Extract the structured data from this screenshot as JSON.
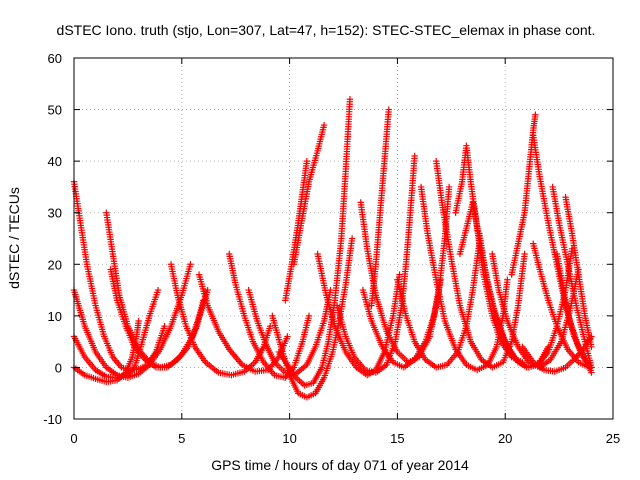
{
  "chart_data": {
    "type": "scatter",
    "title": "dSTEC Iono. truth (stjo, Lon=307, Lat=47, h=152): STEC-STEC_elemax in phase cont.",
    "xlabel": "GPS time / hours of day 071 of year 2014",
    "ylabel": "dSTEC  / TECUs",
    "xlim": [
      0,
      25
    ],
    "ylim": [
      -10,
      60
    ],
    "xticks": [
      "0",
      "5",
      "10",
      "15",
      "20",
      "25"
    ],
    "yticks": [
      "-10",
      "0",
      "10",
      "20",
      "30",
      "40",
      "50",
      "60"
    ],
    "grid": true,
    "marker": "plus",
    "color": "#ff0000",
    "series": [
      {
        "points": [
          [
            0.0,
            36
          ],
          [
            0.3,
            28
          ],
          [
            0.6,
            20
          ],
          [
            1.0,
            12
          ],
          [
            1.4,
            6
          ],
          [
            1.8,
            2
          ],
          [
            2.2,
            0
          ],
          [
            2.6,
            -0.5
          ],
          [
            3.0,
            -0.3
          ],
          [
            3.4,
            0.5
          ],
          [
            3.8,
            3
          ],
          [
            4.2,
            8
          ]
        ]
      },
      {
        "points": [
          [
            0.0,
            15
          ],
          [
            0.5,
            8
          ],
          [
            1.0,
            3
          ],
          [
            1.5,
            0
          ],
          [
            2.0,
            -1.5
          ],
          [
            2.5,
            -2
          ],
          [
            3.0,
            -1.2
          ],
          [
            3.5,
            0.5
          ],
          [
            4.0,
            3.5
          ],
          [
            4.5,
            8
          ],
          [
            5.0,
            14
          ],
          [
            5.4,
            20
          ]
        ]
      },
      {
        "points": [
          [
            0.0,
            6
          ],
          [
            0.5,
            2
          ],
          [
            1.0,
            -0.5
          ],
          [
            1.5,
            -1.8
          ],
          [
            2.0,
            -2
          ],
          [
            2.5,
            -1.5
          ],
          [
            2.8,
            0
          ],
          [
            3.1,
            4
          ],
          [
            3.5,
            10
          ],
          [
            3.9,
            15
          ]
        ]
      },
      {
        "points": [
          [
            0.0,
            0
          ],
          [
            0.5,
            -1.5
          ],
          [
            1.0,
            -2.2
          ],
          [
            1.5,
            -2.8
          ],
          [
            2.0,
            -2.5
          ],
          [
            2.4,
            -1
          ],
          [
            2.7,
            2
          ],
          [
            2.9,
            6
          ],
          [
            3.0,
            9
          ]
        ]
      },
      {
        "points": [
          [
            1.5,
            30
          ],
          [
            1.8,
            22
          ],
          [
            2.1,
            14
          ],
          [
            2.5,
            8
          ],
          [
            3.0,
            3.5
          ],
          [
            3.5,
            1
          ],
          [
            4.0,
            0
          ],
          [
            4.5,
            0.5
          ],
          [
            5.0,
            2.5
          ],
          [
            5.5,
            6
          ],
          [
            5.9,
            11
          ],
          [
            6.2,
            15
          ]
        ]
      },
      {
        "points": [
          [
            1.7,
            19
          ],
          [
            2.0,
            13
          ],
          [
            2.4,
            8
          ],
          [
            2.8,
            4
          ],
          [
            3.3,
            1.5
          ],
          [
            3.8,
            0
          ],
          [
            4.3,
            0
          ],
          [
            4.8,
            1.5
          ],
          [
            5.3,
            4
          ],
          [
            5.7,
            8
          ],
          [
            6.0,
            13
          ]
        ]
      },
      {
        "points": [
          [
            4.5,
            20
          ],
          [
            4.8,
            14
          ],
          [
            5.2,
            8
          ],
          [
            5.6,
            4
          ],
          [
            6.1,
            1
          ],
          [
            6.7,
            -1
          ],
          [
            7.3,
            -1.5
          ],
          [
            7.9,
            -0.8
          ],
          [
            8.4,
            1
          ],
          [
            8.8,
            4
          ],
          [
            9.1,
            8
          ]
        ]
      },
      {
        "points": [
          [
            5.8,
            18
          ],
          [
            6.2,
            12
          ],
          [
            6.7,
            7
          ],
          [
            7.2,
            3.5
          ],
          [
            7.8,
            0.5
          ],
          [
            8.4,
            -0.8
          ],
          [
            9.0,
            -0.5
          ],
          [
            9.5,
            2
          ],
          [
            9.9,
            6
          ]
        ]
      },
      {
        "points": [
          [
            7.2,
            22
          ],
          [
            7.5,
            16
          ],
          [
            7.9,
            10
          ],
          [
            8.3,
            5
          ],
          [
            8.8,
            1
          ],
          [
            9.3,
            -1.5
          ],
          [
            9.8,
            -2
          ],
          [
            10.2,
            0
          ],
          [
            10.6,
            5
          ],
          [
            10.9,
            10
          ]
        ]
      },
      {
        "points": [
          [
            8.1,
            15
          ],
          [
            8.5,
            9
          ],
          [
            8.9,
            4.5
          ],
          [
            9.3,
            1
          ],
          [
            9.8,
            -1
          ],
          [
            10.3,
            -1.2
          ],
          [
            10.8,
            0.5
          ],
          [
            11.2,
            4
          ],
          [
            11.6,
            9
          ],
          [
            11.9,
            15
          ]
        ]
      },
      {
        "points": [
          [
            9.2,
            10
          ],
          [
            9.6,
            4
          ],
          [
            10.0,
            -1.5
          ],
          [
            10.4,
            -5
          ],
          [
            10.8,
            -5.8
          ],
          [
            11.2,
            -5
          ],
          [
            11.6,
            -2
          ],
          [
            12.0,
            3
          ],
          [
            12.3,
            9
          ],
          [
            12.6,
            16
          ],
          [
            12.9,
            25
          ]
        ]
      },
      {
        "points": [
          [
            9.5,
            3
          ],
          [
            9.9,
            0.5
          ],
          [
            10.3,
            -2
          ],
          [
            10.7,
            -3.5
          ],
          [
            11.1,
            -3
          ],
          [
            11.5,
            0
          ],
          [
            11.8,
            5
          ],
          [
            12.1,
            13
          ],
          [
            12.4,
            25
          ],
          [
            12.6,
            38
          ],
          [
            12.8,
            52
          ]
        ]
      },
      {
        "points": [
          [
            9.8,
            13
          ],
          [
            10.1,
            20
          ],
          [
            10.4,
            28
          ],
          [
            10.6,
            34
          ],
          [
            10.8,
            40
          ]
        ]
      },
      {
        "points": [
          [
            10.2,
            20
          ],
          [
            10.5,
            27
          ],
          [
            10.9,
            36
          ],
          [
            11.3,
            42
          ],
          [
            11.6,
            47
          ]
        ]
      },
      {
        "points": [
          [
            11.3,
            22
          ],
          [
            11.7,
            14
          ],
          [
            12.1,
            8
          ],
          [
            12.6,
            3
          ],
          [
            13.1,
            0
          ],
          [
            13.6,
            -1.5
          ],
          [
            14.0,
            -0.5
          ],
          [
            14.4,
            3
          ],
          [
            14.8,
            10
          ],
          [
            15.1,
            18
          ]
        ]
      },
      {
        "points": [
          [
            12.2,
            12
          ],
          [
            12.6,
            6
          ],
          [
            13.0,
            2
          ],
          [
            13.5,
            -0.5
          ],
          [
            14.0,
            -1
          ],
          [
            14.5,
            0.5
          ],
          [
            14.9,
            5
          ],
          [
            15.2,
            12
          ],
          [
            15.4,
            20
          ],
          [
            15.6,
            30
          ],
          [
            15.8,
            41
          ]
        ]
      },
      {
        "points": [
          [
            13.3,
            32
          ],
          [
            13.6,
            23
          ],
          [
            14.0,
            14
          ],
          [
            14.5,
            7
          ],
          [
            15.0,
            3
          ],
          [
            15.5,
            1
          ],
          [
            16.0,
            2
          ],
          [
            16.5,
            6
          ],
          [
            16.9,
            14
          ],
          [
            17.2,
            25
          ],
          [
            17.4,
            35
          ]
        ]
      },
      {
        "points": [
          [
            13.4,
            15
          ],
          [
            13.8,
            9
          ],
          [
            14.3,
            4
          ],
          [
            14.8,
            1
          ],
          [
            15.3,
            0
          ],
          [
            15.8,
            1.5
          ],
          [
            16.3,
            5
          ],
          [
            16.7,
            10
          ],
          [
            17.0,
            17
          ]
        ]
      },
      {
        "points": [
          [
            13.8,
            12
          ],
          [
            14.0,
            20
          ],
          [
            14.2,
            30
          ],
          [
            14.4,
            40
          ],
          [
            14.6,
            50
          ]
        ]
      },
      {
        "points": [
          [
            15.0,
            17
          ],
          [
            15.4,
            10
          ],
          [
            15.8,
            5
          ],
          [
            16.3,
            1.5
          ],
          [
            16.8,
            0
          ],
          [
            17.3,
            0.5
          ],
          [
            17.8,
            3
          ],
          [
            18.2,
            8
          ],
          [
            18.5,
            15
          ],
          [
            18.8,
            24
          ]
        ]
      },
      {
        "points": [
          [
            16.1,
            35
          ],
          [
            16.4,
            26
          ],
          [
            16.8,
            17
          ],
          [
            17.2,
            9
          ],
          [
            17.7,
            3.5
          ],
          [
            18.2,
            0.5
          ],
          [
            18.7,
            -0.5
          ],
          [
            19.2,
            0.5
          ],
          [
            19.6,
            4
          ],
          [
            19.9,
            10
          ],
          [
            20.1,
            17
          ]
        ]
      },
      {
        "points": [
          [
            16.8,
            40
          ],
          [
            17.1,
            31
          ],
          [
            17.5,
            21
          ],
          [
            17.9,
            12
          ],
          [
            18.4,
            5
          ],
          [
            18.9,
            1.5
          ],
          [
            19.4,
            0
          ],
          [
            19.9,
            1
          ],
          [
            20.3,
            5
          ],
          [
            20.6,
            12
          ],
          [
            20.9,
            22
          ]
        ]
      },
      {
        "points": [
          [
            17.7,
            30
          ],
          [
            18.0,
            36
          ],
          [
            18.2,
            43
          ],
          [
            18.4,
            36
          ],
          [
            18.7,
            27
          ],
          [
            19.0,
            18
          ],
          [
            19.4,
            10
          ],
          [
            19.8,
            5
          ],
          [
            20.3,
            2
          ],
          [
            20.8,
            1
          ]
        ]
      },
      {
        "points": [
          [
            17.9,
            22
          ],
          [
            18.2,
            27
          ],
          [
            18.5,
            32
          ],
          [
            18.8,
            25
          ],
          [
            19.2,
            16
          ],
          [
            19.6,
            9
          ],
          [
            20.1,
            4
          ],
          [
            20.6,
            1
          ],
          [
            21.1,
            0
          ],
          [
            21.6,
            1
          ],
          [
            22.0,
            4
          ]
        ]
      },
      {
        "points": [
          [
            18.8,
            26
          ],
          [
            19.1,
            18
          ],
          [
            19.5,
            11
          ],
          [
            20.0,
            5
          ],
          [
            20.5,
            1.5
          ],
          [
            21.0,
            0
          ],
          [
            21.5,
            0.5
          ],
          [
            22.0,
            3
          ],
          [
            22.4,
            8
          ],
          [
            22.8,
            15
          ],
          [
            23.1,
            23
          ]
        ]
      },
      {
        "points": [
          [
            19.4,
            22
          ],
          [
            19.7,
            15
          ],
          [
            20.1,
            9
          ],
          [
            20.6,
            4
          ],
          [
            21.1,
            1
          ],
          [
            21.6,
            0
          ],
          [
            22.1,
            1.5
          ],
          [
            22.6,
            5
          ],
          [
            23.0,
            11
          ],
          [
            23.4,
            19
          ]
        ]
      },
      {
        "points": [
          [
            20.3,
            18
          ],
          [
            20.6,
            24
          ],
          [
            20.9,
            30
          ],
          [
            21.1,
            38
          ],
          [
            21.3,
            46
          ],
          [
            21.4,
            49
          ]
        ]
      },
      {
        "points": [
          [
            21.3,
            45
          ],
          [
            21.6,
            37
          ],
          [
            22.0,
            28
          ],
          [
            22.4,
            20
          ],
          [
            22.8,
            12
          ],
          [
            23.2,
            6
          ],
          [
            23.6,
            2
          ],
          [
            24.0,
            0
          ]
        ]
      },
      {
        "points": [
          [
            21.3,
            24
          ],
          [
            21.6,
            19
          ],
          [
            22.0,
            13
          ],
          [
            22.4,
            8
          ],
          [
            22.9,
            3.5
          ],
          [
            23.4,
            1
          ],
          [
            23.9,
            0
          ]
        ]
      },
      {
        "points": [
          [
            22.2,
            35
          ],
          [
            22.5,
            28
          ],
          [
            22.9,
            20
          ],
          [
            23.3,
            12
          ],
          [
            23.7,
            5
          ],
          [
            24.0,
            0
          ]
        ]
      },
      {
        "points": [
          [
            22.8,
            33
          ],
          [
            23.1,
            26
          ],
          [
            23.4,
            18
          ],
          [
            23.7,
            10
          ],
          [
            24.0,
            4
          ]
        ]
      },
      {
        "points": [
          [
            22.4,
            22
          ],
          [
            22.7,
            15
          ],
          [
            23.0,
            9
          ],
          [
            23.4,
            4
          ],
          [
            23.8,
            1
          ],
          [
            24.0,
            -1
          ]
        ]
      },
      {
        "points": [
          [
            20.8,
            4
          ],
          [
            21.3,
            1
          ],
          [
            21.8,
            -0.5
          ],
          [
            22.3,
            -0.8
          ],
          [
            22.8,
            0
          ],
          [
            23.3,
            2
          ],
          [
            23.7,
            4
          ],
          [
            24.0,
            6
          ]
        ]
      }
    ]
  }
}
